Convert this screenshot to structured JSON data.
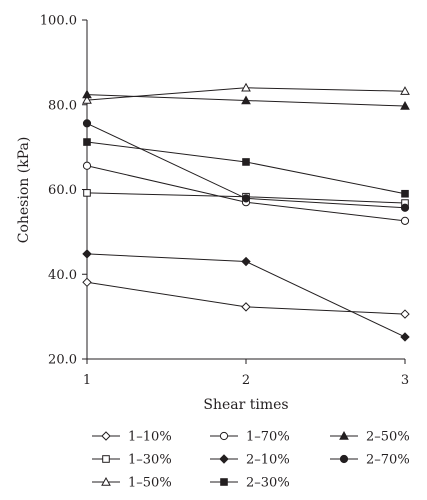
{
  "chart_data": {
    "type": "line",
    "title": "",
    "xlabel": "Shear times",
    "ylabel": "Cohesion (kPa)",
    "x": [
      1,
      2,
      3
    ],
    "x_tick_labels": [
      "1",
      "2",
      "3"
    ],
    "xlim": [
      1,
      3
    ],
    "ylim": [
      20,
      100
    ],
    "y_tick_labels": [
      "20.0",
      "40.0",
      "60.0",
      "80.0",
      "100.0"
    ],
    "grid": false,
    "legend_position": "bottom",
    "colors": {
      "line": "#231f20",
      "open_fill": "#ffffff"
    },
    "series": [
      {
        "name": "1–10%",
        "marker": "diamond-open",
        "values": [
          38.1,
          32.3,
          30.6
        ]
      },
      {
        "name": "1–30%",
        "marker": "square-open",
        "values": [
          59.2,
          58.3,
          56.8
        ]
      },
      {
        "name": "1–50%",
        "marker": "triangle-open",
        "values": [
          81.1,
          84.0,
          83.2
        ]
      },
      {
        "name": "1–70%",
        "marker": "circle-open",
        "values": [
          65.6,
          57.0,
          52.6
        ]
      },
      {
        "name": "2–10%",
        "marker": "diamond-filled",
        "values": [
          44.8,
          43.0,
          25.2
        ]
      },
      {
        "name": "2–30%",
        "marker": "square-filled",
        "values": [
          71.2,
          66.5,
          59.0
        ]
      },
      {
        "name": "2–50%",
        "marker": "triangle-filled",
        "values": [
          82.4,
          81.0,
          79.7
        ]
      },
      {
        "name": "2–70%",
        "marker": "circle-filled",
        "values": [
          75.6,
          57.9,
          55.7
        ]
      }
    ]
  }
}
